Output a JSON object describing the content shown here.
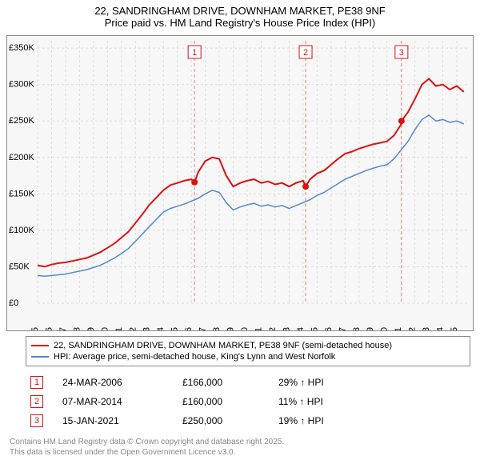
{
  "title": "22, SANDRINGHAM DRIVE, DOWNHAM MARKET, PE38 9NF",
  "subtitle": "Price paid vs. HM Land Registry's House Price Index (HPI)",
  "chart": {
    "type": "line",
    "background_color": "#f7f7f7",
    "border_color": "#888888",
    "grid_color": "#dddddd",
    "grid_dash": "3,3",
    "ylim": [
      0,
      360000
    ],
    "ytick_step": 50000,
    "yticks": [
      "£0",
      "£50K",
      "£100K",
      "£150K",
      "£200K",
      "£250K",
      "£300K",
      "£350K"
    ],
    "yticks_vals": [
      0,
      50000,
      100000,
      150000,
      200000,
      250000,
      300000,
      350000
    ],
    "xlim": [
      1995,
      2025.8
    ],
    "xticks": [
      1995,
      1996,
      1997,
      1998,
      1999,
      2000,
      2001,
      2002,
      2003,
      2004,
      2005,
      2006,
      2007,
      2008,
      2009,
      2010,
      2011,
      2012,
      2013,
      2014,
      2015,
      2016,
      2017,
      2018,
      2019,
      2020,
      2021,
      2022,
      2023,
      2024,
      2025
    ],
    "label_fontsize": 11,
    "series": [
      {
        "name": "property",
        "label": "22, SANDRINGHAM DRIVE, DOWNHAM MARKET, PE38 9NF (semi-detached house)",
        "color": "#dd1111",
        "width": 2,
        "data": [
          [
            1995,
            52000
          ],
          [
            1995.5,
            50000
          ],
          [
            1996,
            53000
          ],
          [
            1996.5,
            55000
          ],
          [
            1997,
            56000
          ],
          [
            1997.5,
            58000
          ],
          [
            1998,
            60000
          ],
          [
            1998.5,
            62000
          ],
          [
            1999,
            66000
          ],
          [
            1999.5,
            70000
          ],
          [
            2000,
            76000
          ],
          [
            2000.5,
            82000
          ],
          [
            2001,
            90000
          ],
          [
            2001.5,
            98000
          ],
          [
            2002,
            110000
          ],
          [
            2002.5,
            122000
          ],
          [
            2003,
            135000
          ],
          [
            2003.5,
            145000
          ],
          [
            2004,
            155000
          ],
          [
            2004.5,
            162000
          ],
          [
            2005,
            165000
          ],
          [
            2005.5,
            168000
          ],
          [
            2006,
            170000
          ],
          [
            2006.23,
            166000
          ],
          [
            2006.5,
            180000
          ],
          [
            2007,
            195000
          ],
          [
            2007.5,
            200000
          ],
          [
            2008,
            198000
          ],
          [
            2008.5,
            175000
          ],
          [
            2009,
            160000
          ],
          [
            2009.5,
            165000
          ],
          [
            2010,
            168000
          ],
          [
            2010.5,
            170000
          ],
          [
            2011,
            165000
          ],
          [
            2011.5,
            167000
          ],
          [
            2012,
            163000
          ],
          [
            2012.5,
            165000
          ],
          [
            2013,
            160000
          ],
          [
            2013.5,
            165000
          ],
          [
            2014,
            168000
          ],
          [
            2014.18,
            160000
          ],
          [
            2014.5,
            170000
          ],
          [
            2015,
            178000
          ],
          [
            2015.5,
            182000
          ],
          [
            2016,
            190000
          ],
          [
            2016.5,
            198000
          ],
          [
            2017,
            205000
          ],
          [
            2017.5,
            208000
          ],
          [
            2018,
            212000
          ],
          [
            2018.5,
            215000
          ],
          [
            2019,
            218000
          ],
          [
            2019.5,
            220000
          ],
          [
            2020,
            222000
          ],
          [
            2020.5,
            230000
          ],
          [
            2021,
            245000
          ],
          [
            2021.04,
            250000
          ],
          [
            2021.5,
            262000
          ],
          [
            2022,
            280000
          ],
          [
            2022.5,
            300000
          ],
          [
            2023,
            308000
          ],
          [
            2023.5,
            298000
          ],
          [
            2024,
            300000
          ],
          [
            2024.5,
            293000
          ],
          [
            2025,
            298000
          ],
          [
            2025.5,
            290000
          ]
        ]
      },
      {
        "name": "hpi",
        "label": "HPI: Average price, semi-detached house, King's Lynn and West Norfolk",
        "color": "#5588cc",
        "width": 1.5,
        "data": [
          [
            1995,
            38000
          ],
          [
            1995.5,
            37000
          ],
          [
            1996,
            38000
          ],
          [
            1996.5,
            39000
          ],
          [
            1997,
            40000
          ],
          [
            1997.5,
            42000
          ],
          [
            1998,
            44000
          ],
          [
            1998.5,
            46000
          ],
          [
            1999,
            49000
          ],
          [
            1999.5,
            52000
          ],
          [
            2000,
            57000
          ],
          [
            2000.5,
            62000
          ],
          [
            2001,
            68000
          ],
          [
            2001.5,
            75000
          ],
          [
            2002,
            85000
          ],
          [
            2002.5,
            95000
          ],
          [
            2003,
            105000
          ],
          [
            2003.5,
            115000
          ],
          [
            2004,
            125000
          ],
          [
            2004.5,
            130000
          ],
          [
            2005,
            133000
          ],
          [
            2005.5,
            136000
          ],
          [
            2006,
            140000
          ],
          [
            2006.5,
            144000
          ],
          [
            2007,
            150000
          ],
          [
            2007.5,
            155000
          ],
          [
            2008,
            152000
          ],
          [
            2008.5,
            138000
          ],
          [
            2009,
            128000
          ],
          [
            2009.5,
            132000
          ],
          [
            2010,
            135000
          ],
          [
            2010.5,
            137000
          ],
          [
            2011,
            133000
          ],
          [
            2011.5,
            135000
          ],
          [
            2012,
            132000
          ],
          [
            2012.5,
            134000
          ],
          [
            2013,
            130000
          ],
          [
            2013.5,
            134000
          ],
          [
            2014,
            138000
          ],
          [
            2014.5,
            142000
          ],
          [
            2015,
            148000
          ],
          [
            2015.5,
            152000
          ],
          [
            2016,
            158000
          ],
          [
            2016.5,
            164000
          ],
          [
            2017,
            170000
          ],
          [
            2017.5,
            174000
          ],
          [
            2018,
            178000
          ],
          [
            2018.5,
            182000
          ],
          [
            2019,
            185000
          ],
          [
            2019.5,
            188000
          ],
          [
            2020,
            190000
          ],
          [
            2020.5,
            198000
          ],
          [
            2021,
            210000
          ],
          [
            2021.5,
            222000
          ],
          [
            2022,
            238000
          ],
          [
            2022.5,
            252000
          ],
          [
            2023,
            258000
          ],
          [
            2023.5,
            250000
          ],
          [
            2024,
            252000
          ],
          [
            2024.5,
            248000
          ],
          [
            2025,
            250000
          ],
          [
            2025.5,
            246000
          ]
        ]
      }
    ],
    "sale_markers": [
      {
        "n": "1",
        "x": 2006.23,
        "y": 166000
      },
      {
        "n": "2",
        "x": 2014.18,
        "y": 160000
      },
      {
        "n": "3",
        "x": 2021.04,
        "y": 250000
      }
    ],
    "marker_color": "#dd1111",
    "marker_box_border": "#dd1111",
    "marker_line_dash": "4,3",
    "marker_line_color": "#dd8888"
  },
  "legend": {
    "rows": [
      {
        "color": "#dd1111",
        "label": "22, SANDRINGHAM DRIVE, DOWNHAM MARKET, PE38 9NF (semi-detached house)"
      },
      {
        "color": "#5588cc",
        "label": "HPI: Average price, semi-detached house, King's Lynn and West Norfolk"
      }
    ]
  },
  "sales": [
    {
      "n": "1",
      "date": "24-MAR-2006",
      "price": "£166,000",
      "delta": "29% ↑ HPI"
    },
    {
      "n": "2",
      "date": "07-MAR-2014",
      "price": "£160,000",
      "delta": "11% ↑ HPI"
    },
    {
      "n": "3",
      "date": "15-JAN-2021",
      "price": "£250,000",
      "delta": "19% ↑ HPI"
    }
  ],
  "footer": {
    "line1": "Contains HM Land Registry data © Crown copyright and database right 2025.",
    "line2": "This data is licensed under the Open Government Licence v3.0."
  }
}
